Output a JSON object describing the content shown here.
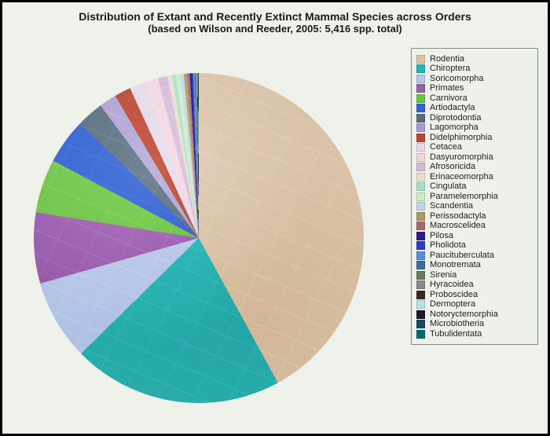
{
  "title": {
    "main": "Distribution of Extant and Recently Extinct Mammal Species across Orders",
    "sub": "(based on Wilson and Reeder, 2005: 5,416 spp. total)"
  },
  "chart": {
    "type": "pie",
    "total": 5416,
    "background_color": "#eff2eb",
    "frame_border_color": "#000000",
    "title_fontsize": 14,
    "subtitle_fontsize": 13,
    "legend": {
      "position": "right",
      "fontsize": 11,
      "border_color": "#888888",
      "background_color": "#eef0ea"
    },
    "slices": [
      {
        "label": "Rodentia",
        "value": 2277,
        "color": "#d9c2a7"
      },
      {
        "label": "Chiroptera",
        "value": 1116,
        "color": "#2cb3b3"
      },
      {
        "label": "Soricomorpha",
        "value": 428,
        "color": "#b7c7e8"
      },
      {
        "label": "Primates",
        "value": 376,
        "color": "#9a5fad"
      },
      {
        "label": "Carnivora",
        "value": 286,
        "color": "#6bc24a"
      },
      {
        "label": "Artiodactyla",
        "value": 240,
        "color": "#3a5fcf"
      },
      {
        "label": "Diprotodontia",
        "value": 143,
        "color": "#5a6a78"
      },
      {
        "label": "Lagomorpha",
        "value": 92,
        "color": "#a89bd1"
      },
      {
        "label": "Didelphimorphia",
        "value": 87,
        "color": "#b54a3a"
      },
      {
        "label": "Cetacea",
        "value": 84,
        "color": "#e5d7e8"
      },
      {
        "label": "Dasyuromorphia",
        "value": 71,
        "color": "#f4d4e0"
      },
      {
        "label": "Afrosoricida",
        "value": 51,
        "color": "#d2b8d9"
      },
      {
        "label": "Erinaceomorpha",
        "value": 24,
        "color": "#e9dccb"
      },
      {
        "label": "Cingulata",
        "value": 21,
        "color": "#a7e0c5"
      },
      {
        "label": "Paramelemorphia",
        "value": 21,
        "color": "#cdeec0"
      },
      {
        "label": "Scandentia",
        "value": 20,
        "color": "#c5d4e6"
      },
      {
        "label": "Perissodactyla",
        "value": 17,
        "color": "#a8986b"
      },
      {
        "label": "Macroscelidea",
        "value": 15,
        "color": "#a06a6a"
      },
      {
        "label": "Pilosa",
        "value": 10,
        "color": "#2a1a8a"
      },
      {
        "label": "Pholidota",
        "value": 8,
        "color": "#2a3fbf"
      },
      {
        "label": "Paucituberculata",
        "value": 6,
        "color": "#5a8fd6"
      },
      {
        "label": "Monotremata",
        "value": 5,
        "color": "#3c6f9a"
      },
      {
        "label": "Sirenia",
        "value": 5,
        "color": "#6b7a5a"
      },
      {
        "label": "Hyracoidea",
        "value": 4,
        "color": "#8a8a8a"
      },
      {
        "label": "Proboscidea",
        "value": 3,
        "color": "#3a2a1a"
      },
      {
        "label": "Dermoptera",
        "value": 2,
        "color": "#b8e0e0"
      },
      {
        "label": "Notoryctemorphia",
        "value": 2,
        "color": "#1a1a2a"
      },
      {
        "label": "Microbiotheria",
        "value": 1,
        "color": "#1a4a6a"
      },
      {
        "label": "Tubulidentata",
        "value": 1,
        "color": "#0a6a6a"
      }
    ]
  }
}
